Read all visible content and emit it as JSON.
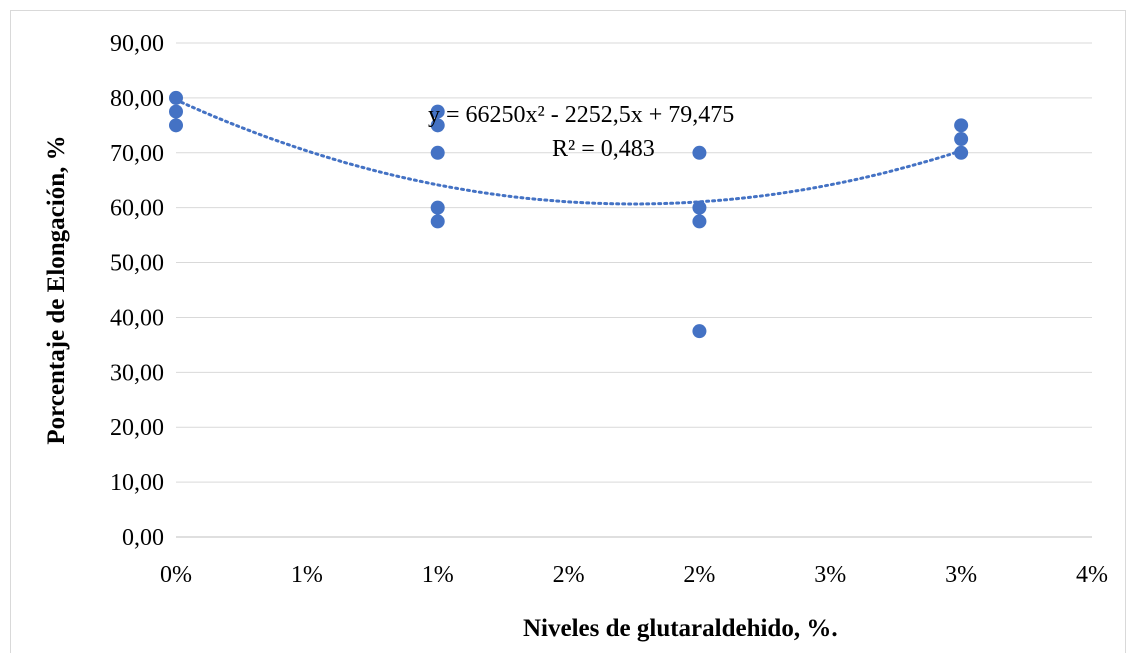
{
  "chart_data": {
    "type": "scatter",
    "xlabel": "Niveles de glutaraldehido, %.",
    "ylabel": "Porcentaje de Elongación, %",
    "x_tick_labels": [
      "0%",
      "1%",
      "1%",
      "2%",
      "2%",
      "3%",
      "3%",
      "4%"
    ],
    "x_ticks": [
      0,
      0.5,
      1,
      1.5,
      2,
      2.5,
      3,
      3.5
    ],
    "xlim": [
      0,
      3.5
    ],
    "y_tick_labels": [
      "0,00",
      "10,00",
      "20,00",
      "30,00",
      "40,00",
      "50,00",
      "60,00",
      "70,00",
      "80,00",
      "90,00"
    ],
    "y_ticks": [
      0,
      10,
      20,
      30,
      40,
      50,
      60,
      70,
      80,
      90
    ],
    "ylim": [
      0,
      90
    ],
    "grid": "horizontal",
    "series": [
      {
        "color": "#4472c4",
        "points": [
          {
            "x": 0,
            "y": 80
          },
          {
            "x": 0,
            "y": 77.5
          },
          {
            "x": 0,
            "y": 75
          },
          {
            "x": 1,
            "y": 77.5
          },
          {
            "x": 1,
            "y": 75
          },
          {
            "x": 1,
            "y": 70
          },
          {
            "x": 1,
            "y": 60
          },
          {
            "x": 1,
            "y": 57.5
          },
          {
            "x": 2,
            "y": 70
          },
          {
            "x": 2,
            "y": 60
          },
          {
            "x": 2,
            "y": 57.5
          },
          {
            "x": 2,
            "y": 37.5
          },
          {
            "x": 3,
            "y": 75
          },
          {
            "x": 3,
            "y": 72.5
          },
          {
            "x": 3,
            "y": 70
          }
        ]
      }
    ],
    "trendline": {
      "type": "polynomial",
      "order": 2,
      "color": "#4472c4",
      "style": "dotted",
      "equation": "y = 66250x² - 2252,5x + 79,475",
      "r_squared": "R² = 0,483"
    }
  }
}
